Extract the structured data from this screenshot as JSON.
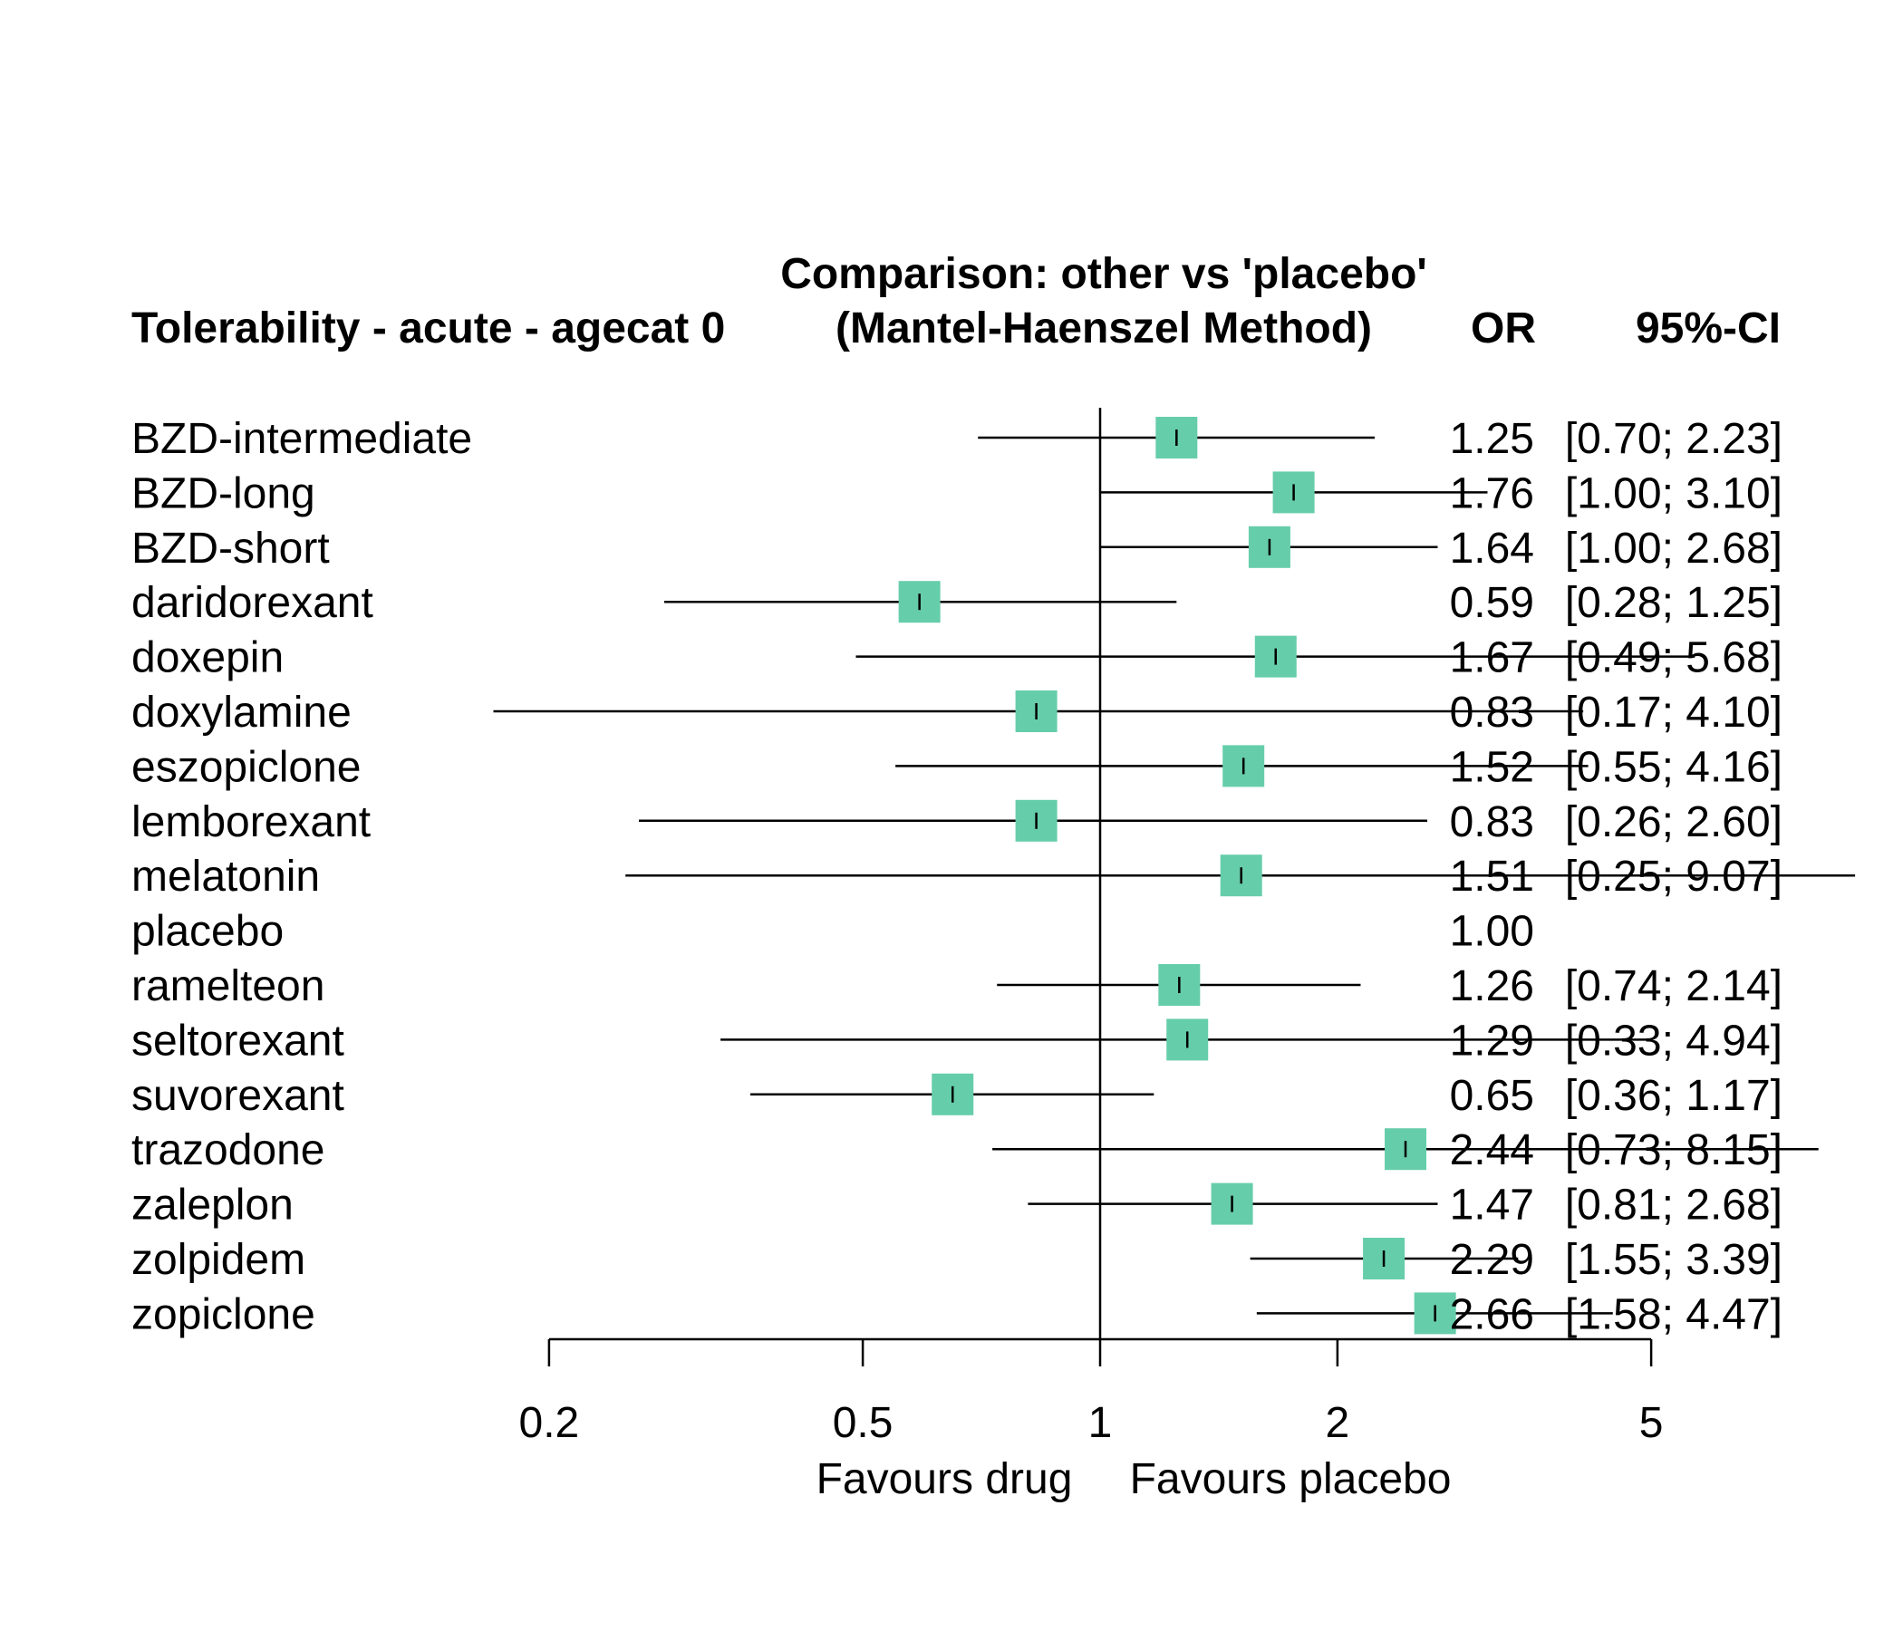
{
  "header": {
    "left_title": "Tolerability - acute - agecat 0",
    "center_title_line1": "Comparison: other vs 'placebo'",
    "center_title_line2": "(Mantel-Haenszel Method)",
    "col_or": "OR",
    "col_ci": "95%-CI"
  },
  "axis": {
    "ticks": [
      "0.2",
      "0.5",
      "1",
      "2",
      "5"
    ],
    "tick_values": [
      0.2,
      0.5,
      1,
      2,
      5
    ],
    "label_left": "Favours drug",
    "label_right": "Favours placebo",
    "scale": "log"
  },
  "colors": {
    "square": "#66CDAA",
    "line": "#000000"
  },
  "chart_data": {
    "type": "forest",
    "reference": 1,
    "rows": [
      {
        "name": "BZD-intermediate",
        "or": 1.25,
        "lower": 0.7,
        "upper": 2.23,
        "or_text": "1.25",
        "ci_text": "[0.70; 2.23]"
      },
      {
        "name": "BZD-long",
        "or": 1.76,
        "lower": 1.0,
        "upper": 3.1,
        "or_text": "1.76",
        "ci_text": "[1.00; 3.10]"
      },
      {
        "name": "BZD-short",
        "or": 1.64,
        "lower": 1.0,
        "upper": 2.68,
        "or_text": "1.64",
        "ci_text": "[1.00; 2.68]"
      },
      {
        "name": "daridorexant",
        "or": 0.59,
        "lower": 0.28,
        "upper": 1.25,
        "or_text": "0.59",
        "ci_text": "[0.28; 1.25]"
      },
      {
        "name": "doxepin",
        "or": 1.67,
        "lower": 0.49,
        "upper": 5.68,
        "or_text": "1.67",
        "ci_text": "[0.49; 5.68]"
      },
      {
        "name": "doxylamine",
        "or": 0.83,
        "lower": 0.17,
        "upper": 4.1,
        "or_text": "0.83",
        "ci_text": "[0.17; 4.10]"
      },
      {
        "name": "eszopiclone",
        "or": 1.52,
        "lower": 0.55,
        "upper": 4.16,
        "or_text": "1.52",
        "ci_text": "[0.55; 4.16]"
      },
      {
        "name": "lemborexant",
        "or": 0.83,
        "lower": 0.26,
        "upper": 2.6,
        "or_text": "0.83",
        "ci_text": "[0.26; 2.60]"
      },
      {
        "name": "melatonin",
        "or": 1.51,
        "lower": 0.25,
        "upper": 9.07,
        "or_text": "1.51",
        "ci_text": "[0.25; 9.07]"
      },
      {
        "name": "placebo",
        "or": 1.0,
        "lower": null,
        "upper": null,
        "or_text": "1.00",
        "ci_text": ""
      },
      {
        "name": "ramelteon",
        "or": 1.26,
        "lower": 0.74,
        "upper": 2.14,
        "or_text": "1.26",
        "ci_text": "[0.74; 2.14]"
      },
      {
        "name": "seltorexant",
        "or": 1.29,
        "lower": 0.33,
        "upper": 4.94,
        "or_text": "1.29",
        "ci_text": "[0.33; 4.94]"
      },
      {
        "name": "suvorexant",
        "or": 0.65,
        "lower": 0.36,
        "upper": 1.17,
        "or_text": "0.65",
        "ci_text": "[0.36; 1.17]"
      },
      {
        "name": "trazodone",
        "or": 2.44,
        "lower": 0.73,
        "upper": 8.15,
        "or_text": "2.44",
        "ci_text": "[0.73; 8.15]"
      },
      {
        "name": "zaleplon",
        "or": 1.47,
        "lower": 0.81,
        "upper": 2.68,
        "or_text": "1.47",
        "ci_text": "[0.81; 2.68]"
      },
      {
        "name": "zolpidem",
        "or": 2.29,
        "lower": 1.55,
        "upper": 3.39,
        "or_text": "2.29",
        "ci_text": "[1.55; 3.39]"
      },
      {
        "name": "zopiclone",
        "or": 2.66,
        "lower": 1.58,
        "upper": 4.47,
        "or_text": "2.66",
        "ci_text": "[1.58; 4.47]"
      }
    ]
  }
}
